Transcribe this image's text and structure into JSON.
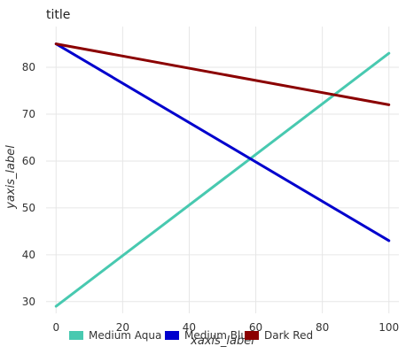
{
  "chart_data": {
    "type": "line",
    "title": "title",
    "xlabel": "xaxis_label",
    "ylabel": "yaxis_label",
    "xlim": [
      -3,
      103
    ],
    "ylim": [
      27.5,
      88.7
    ],
    "x_ticks": [
      0,
      20,
      40,
      60,
      80,
      100
    ],
    "y_ticks": [
      30,
      40,
      50,
      60,
      70,
      80
    ],
    "grid": true,
    "legend_position": "bottom",
    "series": [
      {
        "name": "Medium Aqua",
        "color": "#48c9b0",
        "x": [
          0,
          100
        ],
        "y": [
          29.0,
          83.0
        ]
      },
      {
        "name": "Medium Blue",
        "color": "#0000cd",
        "x": [
          0,
          100
        ],
        "y": [
          85.0,
          43.0
        ]
      },
      {
        "name": "Dark Red",
        "color": "#8b0000",
        "x": [
          0,
          100
        ],
        "y": [
          85.0,
          72.0
        ]
      }
    ]
  }
}
